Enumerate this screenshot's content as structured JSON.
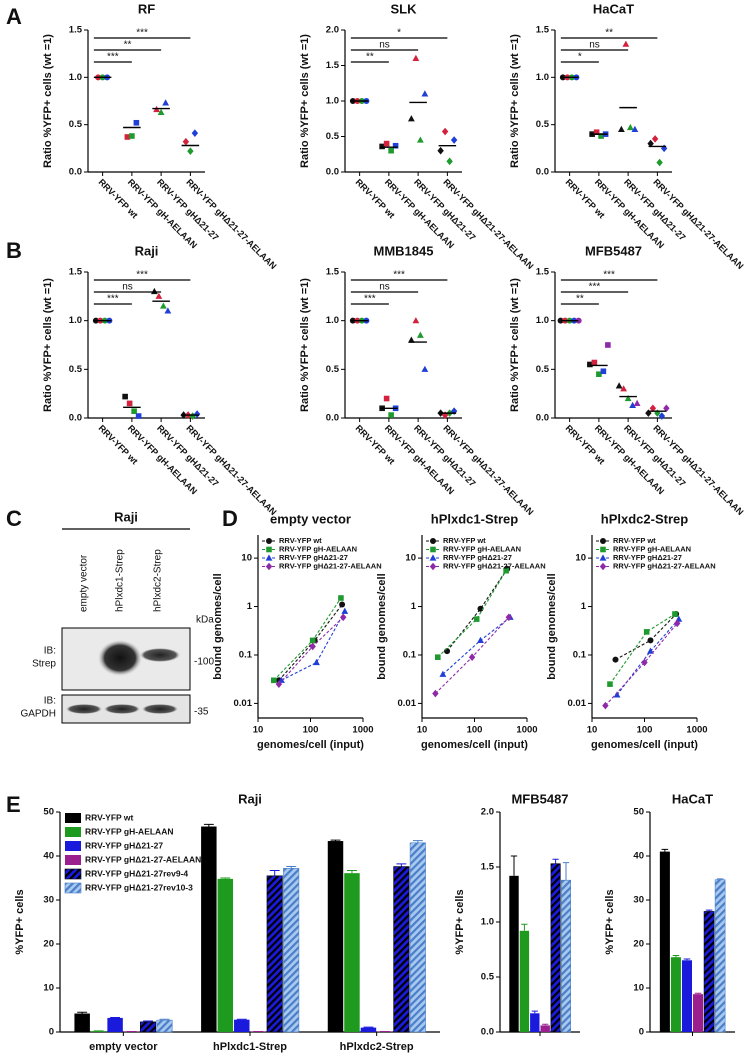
{
  "figure": {
    "panels": [
      "A",
      "B",
      "C",
      "D",
      "E"
    ],
    "blot": {
      "cell_line": "Raji",
      "lanes": [
        "empty vector",
        "hPlxdc1-Strep",
        "hPlxdc2-Strep"
      ],
      "unit": "kDa",
      "probes": [
        {
          "label": "IB:",
          "target": "Strep",
          "marker": "-100"
        },
        {
          "label": "IB:",
          "target": "GAPDH",
          "marker": "-35"
        }
      ]
    }
  },
  "chart_data": [
    {
      "type": "dot",
      "title": "RF",
      "y_label": "Ratio %YFP+ cells (wt =1)",
      "categories": [
        "RRV-YFP wt",
        "RRV-YFP gH-AELAAN",
        "RRV-YFP gHΔ21-27",
        "RRV-YFP gHΔ21-27-AELAAN"
      ],
      "series": [
        {
          "color": "#d4213d",
          "values": [
            1,
            0.37,
            0.66,
            0.32
          ]
        },
        {
          "color": "#1f9a2f",
          "values": [
            1,
            0.38,
            0.63,
            0.22
          ]
        },
        {
          "color": "#1f3fd6",
          "values": [
            1,
            0.52,
            0.73,
            0.41
          ]
        }
      ],
      "means": [
        1,
        0.47,
        0.67,
        0.28
      ],
      "significance": [
        null,
        "***",
        "**",
        "***"
      ],
      "ylim": [
        0,
        1.5
      ],
      "yticks": [
        {
          "value": 0,
          "label": "0.0"
        },
        0.5,
        {
          "value": 1,
          "label": "1.0"
        },
        1.5
      ]
    },
    {
      "type": "dot",
      "title": "SLK",
      "y_label": "Ratio %YFP+ cells (wt =1)",
      "categories": [
        "RRV-YFP wt",
        "RRV-YFP gH-AELAAN",
        "RRV-YFP gHΔ21-27",
        "RRV-YFP gHΔ21-27-AELAAN"
      ],
      "series": [
        {
          "color": "#111111",
          "values": [
            1,
            0.36,
            0.75,
            0.3
          ]
        },
        {
          "color": "#d4213d",
          "values": [
            1,
            0.4,
            1.6,
            0.57
          ]
        },
        {
          "color": "#1f9a2f",
          "values": [
            1,
            0.3,
            0.45,
            0.15
          ]
        },
        {
          "color": "#1f3fd6",
          "values": [
            1,
            0.37,
            1.1,
            0.45
          ]
        }
      ],
      "means": [
        1,
        0.35,
        0.98,
        0.37
      ],
      "significance": [
        null,
        "**",
        "ns",
        "*"
      ],
      "ylim": [
        0,
        2
      ],
      "yticks": [
        {
          "value": 0,
          "label": "0.0"
        },
        0.5,
        {
          "value": 1,
          "label": "1.0"
        },
        1.5,
        {
          "value": 2,
          "label": "2.0"
        }
      ]
    },
    {
      "type": "dot",
      "title": "HaCaT",
      "y_label": "Ratio %YFP+ cells (wt =1)",
      "categories": [
        "RRV-YFP wt",
        "RRV-YFP gH-AELAAN",
        "RRV-YFP gHΔ21-27",
        "RRV-YFP gHΔ21-27-AELAAN"
      ],
      "series": [
        {
          "color": "#111111",
          "values": [
            1,
            0.4,
            0.45,
            0.3
          ]
        },
        {
          "color": "#d4213d",
          "values": [
            1,
            0.42,
            1.35,
            0.35
          ]
        },
        {
          "color": "#1f9a2f",
          "values": [
            1,
            0.38,
            0.47,
            0.1
          ]
        },
        {
          "color": "#1f3fd6",
          "values": [
            1,
            0.4,
            0.45,
            0.25
          ]
        }
      ],
      "means": [
        1,
        0.4,
        0.68,
        0.27
      ],
      "significance": [
        null,
        "*",
        "ns",
        "**"
      ],
      "ylim": [
        0,
        1.5
      ],
      "yticks": [
        {
          "value": 0,
          "label": "0.0"
        },
        0.5,
        {
          "value": 1,
          "label": "1.0"
        },
        1.5
      ]
    },
    {
      "type": "dot",
      "title": "Raji",
      "y_label": "Ratio %YFP+ cells (wt =1)",
      "categories": [
        "RRV-YFP wt",
        "RRV-YFP gH-AELAAN",
        "RRV-YFP gHΔ21-27",
        "RRV-YFP gHΔ21-27-AELAAN"
      ],
      "series": [
        {
          "color": "#111111",
          "values": [
            1,
            0.22,
            1.3,
            0.03
          ]
        },
        {
          "color": "#d4213d",
          "values": [
            1,
            0.15,
            1.25,
            0.03
          ]
        },
        {
          "color": "#1f9a2f",
          "values": [
            1,
            0.07,
            1.15,
            0.02
          ]
        },
        {
          "color": "#1f3fd6",
          "values": [
            1,
            0.02,
            1.1,
            0.04
          ]
        }
      ],
      "means": [
        1,
        0.11,
        1.2,
        0.03
      ],
      "significance": [
        null,
        "***",
        "ns",
        "***"
      ],
      "ylim": [
        0,
        1.5
      ],
      "yticks": [
        {
          "value": 0,
          "label": "0.0"
        },
        0.5,
        {
          "value": 1,
          "label": "1.0"
        },
        1.5
      ]
    },
    {
      "type": "dot",
      "title": "MMB1845",
      "y_label": "Ratio %YFP+ cells (wt =1)",
      "categories": [
        "RRV-YFP wt",
        "RRV-YFP gH-AELAAN",
        "RRV-YFP gHΔ21-27",
        "RRV-YFP gHΔ21-27-AELAAN"
      ],
      "series": [
        {
          "color": "#111111",
          "values": [
            1,
            0.1,
            0.8,
            0.05
          ]
        },
        {
          "color": "#d4213d",
          "values": [
            1,
            0.2,
            1.0,
            0.03
          ]
        },
        {
          "color": "#1f9a2f",
          "values": [
            1,
            0.03,
            0.85,
            0.05
          ]
        },
        {
          "color": "#1f3fd6",
          "values": [
            1,
            0.1,
            0.5,
            0.07
          ]
        }
      ],
      "means": [
        1,
        0.1,
        0.78,
        0.05
      ],
      "significance": [
        null,
        "***",
        "ns",
        "***"
      ],
      "ylim": [
        0,
        1.5
      ],
      "yticks": [
        {
          "value": 0,
          "label": "0.0"
        },
        0.5,
        {
          "value": 1,
          "label": "1.0"
        },
        1.5
      ]
    },
    {
      "type": "dot",
      "title": "MFB5487",
      "y_label": "Ratio %YFP+ cells (wt =1)",
      "categories": [
        "RRV-YFP wt",
        "RRV-YFP gH-AELAAN",
        "RRV-YFP gHΔ21-27",
        "RRV-YFP gHΔ21-27-AELAAN"
      ],
      "series": [
        {
          "color": "#111111",
          "values": [
            1,
            0.55,
            0.33,
            0.05
          ]
        },
        {
          "color": "#d4213d",
          "values": [
            1,
            0.57,
            0.3,
            0.1
          ]
        },
        {
          "color": "#1f9a2f",
          "values": [
            1,
            0.45,
            0.2,
            0.05
          ]
        },
        {
          "color": "#1f3fd6",
          "values": [
            1,
            0.48,
            0.13,
            0.02
          ]
        },
        {
          "color": "#8e2aa8",
          "values": [
            1,
            0.75,
            0.15,
            0.1
          ]
        }
      ],
      "means": [
        1,
        0.54,
        0.22,
        0.07
      ],
      "significance": [
        null,
        "**",
        "***",
        "***"
      ],
      "ylim": [
        0,
        1.5
      ],
      "yticks": [
        {
          "value": 0,
          "label": "0.0"
        },
        0.5,
        {
          "value": 1,
          "label": "1.0"
        },
        1.5
      ]
    },
    {
      "type": "scatter",
      "title": "empty vector",
      "x_label": "genomes/cell (input)",
      "y_label": "bound genomes/cell",
      "xscale": "log",
      "yscale": "log",
      "series": [
        {
          "name": "RRV-YFP wt",
          "color": "#111111",
          "x": [
            25,
            120,
            400
          ],
          "values": [
            0.03,
            0.2,
            1.1
          ]
        },
        {
          "name": "RRV-YFP gH-AELAAN",
          "color": "#1f9a2f",
          "x": [
            20,
            110,
            380
          ],
          "values": [
            0.03,
            0.2,
            1.5
          ]
        },
        {
          "name": "RRV-YFP gHΔ21-27",
          "color": "#1f3fd6",
          "x": [
            28,
            130,
            450
          ],
          "values": [
            0.03,
            0.07,
            0.8
          ]
        },
        {
          "name": "RRV-YFP gHΔ21-27-AELAAN",
          "color": "#8e2aa8",
          "x": [
            25,
            110,
            420
          ],
          "values": [
            0.025,
            0.15,
            0.6
          ]
        }
      ],
      "xlim": [
        10,
        1000
      ],
      "xticks": [
        10,
        100,
        1000
      ],
      "ylim": [
        0.005,
        30
      ],
      "yticks": [
        0.01,
        0.1,
        1,
        10
      ]
    },
    {
      "type": "scatter",
      "title": "hPlxdc1-Strep",
      "x_label": "genomes/cell (input)",
      "y_label": "bound genomes/cell",
      "xscale": "log",
      "yscale": "log",
      "series": [
        {
          "name": "RRV-YFP wt",
          "color": "#111111",
          "x": [
            30,
            130,
            420
          ],
          "values": [
            0.12,
            0.9,
            6
          ]
        },
        {
          "name": "RRV-YFP gH-AELAAN",
          "color": "#1f9a2f",
          "x": [
            20,
            110,
            400
          ],
          "values": [
            0.09,
            0.55,
            5.5
          ]
        },
        {
          "name": "RRV-YFP gHΔ21-27",
          "color": "#1f3fd6",
          "x": [
            25,
            130,
            480
          ],
          "values": [
            0.04,
            0.2,
            0.6
          ]
        },
        {
          "name": "RRV-YFP gHΔ21-27-AELAAN",
          "color": "#8e2aa8",
          "x": [
            18,
            90,
            450
          ],
          "values": [
            0.016,
            0.09,
            0.6
          ]
        }
      ],
      "xlim": [
        10,
        1000
      ],
      "xticks": [
        10,
        100,
        1000
      ],
      "ylim": [
        0.005,
        30
      ],
      "yticks": [
        0.01,
        0.1,
        1,
        10
      ]
    },
    {
      "type": "scatter",
      "title": "hPlxdc2-Strep",
      "x_label": "genomes/cell (input)",
      "y_label": "bound genomes/cell",
      "xscale": "log",
      "yscale": "log",
      "series": [
        {
          "name": "RRV-YFP wt",
          "color": "#111111",
          "x": [
            28,
            130,
            400
          ],
          "values": [
            0.08,
            0.2,
            0.7
          ]
        },
        {
          "name": "RRV-YFP gH-AELAAN",
          "color": "#1f9a2f",
          "x": [
            22,
            110,
            380
          ],
          "values": [
            0.025,
            0.3,
            0.7
          ]
        },
        {
          "name": "RRV-YFP gHΔ21-27",
          "color": "#1f3fd6",
          "x": [
            30,
            130,
            450
          ],
          "values": [
            0.015,
            0.12,
            0.55
          ]
        },
        {
          "name": "RRV-YFP gHΔ21-27-AELAAN",
          "color": "#8e2aa8",
          "x": [
            18,
            100,
            420
          ],
          "values": [
            0.009,
            0.07,
            0.45
          ]
        }
      ],
      "xlim": [
        10,
        1000
      ],
      "xticks": [
        10,
        100,
        1000
      ],
      "ylim": [
        0.005,
        30
      ],
      "yticks": [
        0.01,
        0.1,
        1,
        10
      ]
    },
    {
      "type": "bar",
      "title": "Raji",
      "y_label": "%YFP+ cells",
      "legend": "upper left",
      "categories": [
        "empty vector",
        "hPlxdc1-Strep",
        "hPlxdc2-Strep"
      ],
      "series": [
        {
          "name": "RRV-YFP wt",
          "color": "#000000",
          "values": [
            4.2,
            46.7,
            43.4
          ],
          "errors": [
            0.3,
            0.5,
            0.2
          ]
        },
        {
          "name": "RRV-YFP gH-AELAAN",
          "color": "#1e9a1e",
          "values": [
            0.2,
            34.8,
            36.1
          ],
          "errors": [
            0.05,
            0.2,
            0.6
          ]
        },
        {
          "name": "RRV-YFP gHΔ21-27",
          "color": "#1a1adc",
          "values": [
            3.2,
            2.8,
            1.0
          ],
          "errors": [
            0.1,
            0.1,
            0.1
          ]
        },
        {
          "name": "RRV-YFP gHΔ21-27-AELAAN",
          "color": "#9b1f8f",
          "values": [
            0.1,
            0.1,
            0.1
          ],
          "errors": [
            0.02,
            0.02,
            0.02
          ]
        },
        {
          "name": "RRV-YFP gHΔ21-27rev9-4",
          "color": "#1a1adc",
          "hatch": "#000000",
          "values": [
            2.3,
            35.5,
            37.6
          ],
          "errors": [
            0.2,
            1.2,
            0.6
          ]
        },
        {
          "name": "RRV-YFP gHΔ21-27rev10-3",
          "color": "#a8c8f0",
          "hatch": "#4a7fc8",
          "values": [
            2.7,
            37.2,
            43.0
          ],
          "errors": [
            0.2,
            0.4,
            0.5
          ]
        }
      ],
      "ylim": [
        0,
        50
      ],
      "yticks": [
        0,
        10,
        20,
        30,
        40,
        50
      ]
    },
    {
      "type": "bar",
      "title": "MFB5487",
      "y_label": "%YFP+ cells",
      "categories": [
        null
      ],
      "series": [
        {
          "color": "#000000",
          "values": [
            1.42
          ],
          "errors": [
            0.18
          ]
        },
        {
          "color": "#1e9a1e",
          "values": [
            0.92
          ],
          "errors": [
            0.06
          ]
        },
        {
          "color": "#1a1adc",
          "values": [
            0.17
          ],
          "errors": [
            0.02
          ]
        },
        {
          "color": "#9b1f8f",
          "values": [
            0.06
          ],
          "errors": [
            0.01
          ]
        },
        {
          "color": "#1a1adc",
          "hatch": "#000000",
          "values": [
            1.53
          ],
          "errors": [
            0.04
          ]
        },
        {
          "color": "#a8c8f0",
          "hatch": "#4a7fc8",
          "values": [
            1.38
          ],
          "errors": [
            0.16
          ]
        }
      ],
      "ylim": [
        0,
        2
      ],
      "yticks": [
        {
          "value": 0,
          "label": "0.0"
        },
        0.5,
        {
          "value": 1,
          "label": "1.0"
        },
        1.5,
        {
          "value": 2,
          "label": "2.0"
        }
      ]
    },
    {
      "type": "bar",
      "title": "HaCaT",
      "y_label": "%YFP+ cells",
      "categories": [
        null
      ],
      "series": [
        {
          "color": "#000000",
          "values": [
            41
          ],
          "errors": [
            0.5
          ]
        },
        {
          "color": "#1e9a1e",
          "values": [
            17
          ],
          "errors": [
            0.4
          ]
        },
        {
          "color": "#1a1adc",
          "values": [
            16.3
          ],
          "errors": [
            0.3
          ]
        },
        {
          "color": "#9b1f8f",
          "values": [
            8.6
          ],
          "errors": [
            0.2
          ]
        },
        {
          "color": "#1a1adc",
          "hatch": "#000000",
          "values": [
            27.4
          ],
          "errors": [
            0.3
          ]
        },
        {
          "color": "#a8c8f0",
          "hatch": "#4a7fc8",
          "values": [
            34.6
          ],
          "errors": [
            0.2
          ]
        }
      ],
      "ylim": [
        0,
        50
      ],
      "yticks": [
        0,
        10,
        20,
        30,
        40,
        50
      ]
    }
  ]
}
